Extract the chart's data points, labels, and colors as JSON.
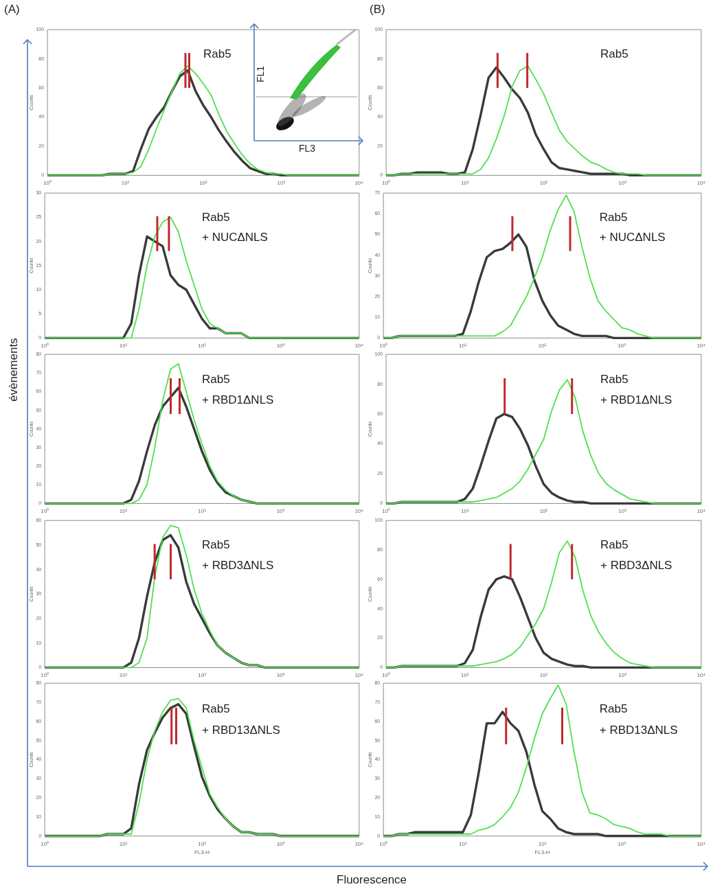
{
  "chart_data": [
    {
      "type": "line",
      "x": [
        1,
        1.26,
        1.58,
        2,
        2.51,
        3.16,
        3.98,
        5.01,
        6.31,
        7.94,
        10,
        12.6,
        15.8,
        20,
        25.1,
        31.6,
        39.8,
        50.1,
        63.1,
        79.4,
        100,
        126,
        158,
        200,
        251,
        316,
        398,
        501,
        631,
        794,
        1000,
        1259,
        1585,
        1995,
        2512,
        3162,
        3981,
        5012,
        6310,
        7943,
        10000
      ],
      "ylabel": "Counts",
      "annotations": [
        "Rab5"
      ],
      "xlim": [
        1,
        10000
      ],
      "xticks": [
        {
          "value": 1,
          "label": "10⁰"
        },
        {
          "value": 10,
          "label": "10¹"
        },
        {
          "value": 100,
          "label": "10²"
        },
        {
          "value": 1000,
          "label": "10³"
        },
        {
          "value": 10000,
          "label": "10⁴"
        }
      ],
      "ylim": [
        0,
        100
      ],
      "yticks": [
        0,
        20,
        40,
        60,
        80,
        100
      ],
      "log": "x",
      "marker": "none",
      "ref_lines": [
        {
          "axis": "x",
          "value": 59,
          "color": "#c0282d"
        },
        {
          "axis": "x",
          "value": 66,
          "color": "#c0282d"
        }
      ],
      "series": [
        {
          "color": "#3a3a3a",
          "values": [
            0,
            0,
            0,
            0,
            0,
            0,
            0,
            0,
            1,
            1,
            1,
            3,
            18,
            32,
            40,
            47,
            58,
            68,
            72,
            58,
            48,
            40,
            31,
            23,
            16,
            10,
            5,
            3,
            1,
            1,
            0,
            0,
            0,
            0,
            0,
            0,
            0,
            0,
            0,
            0,
            0
          ]
        },
        {
          "color": "#4fe04f",
          "values": [
            0,
            0,
            0,
            0,
            0,
            0,
            0,
            0,
            1,
            1,
            1,
            2,
            6,
            18,
            32,
            45,
            58,
            70,
            75,
            70,
            63,
            55,
            42,
            30,
            22,
            14,
            8,
            4,
            2,
            1,
            1,
            0,
            0,
            0,
            0,
            0,
            0,
            0,
            0,
            0,
            0
          ]
        }
      ]
    },
    {
      "type": "line",
      "x": [
        1,
        1.26,
        1.58,
        2,
        2.51,
        3.16,
        3.98,
        5.01,
        6.31,
        7.94,
        10,
        12.6,
        15.8,
        20,
        25.1,
        31.6,
        39.8,
        50.1,
        63.1,
        79.4,
        100,
        126,
        158,
        200,
        251,
        316,
        398,
        501,
        631,
        794,
        1000,
        1259,
        1585,
        1995,
        2512,
        3162,
        3981,
        5012,
        6310,
        7943,
        10000
      ],
      "ylabel": "Counts",
      "annotations": [
        "Rab5"
      ],
      "xlim": [
        1,
        10000
      ],
      "xticks": [
        {
          "value": 1,
          "label": "10⁰"
        },
        {
          "value": 10,
          "label": "10¹"
        },
        {
          "value": 100,
          "label": "10²"
        },
        {
          "value": 1000,
          "label": "10³"
        },
        {
          "value": 10000,
          "label": "10⁴"
        }
      ],
      "ylim": [
        0,
        100
      ],
      "yticks": [
        0,
        20,
        40,
        60,
        80,
        100
      ],
      "log": "x",
      "marker": "none",
      "ref_lines": [
        {
          "axis": "x",
          "value": 26,
          "color": "#c0282d"
        },
        {
          "axis": "x",
          "value": 62,
          "color": "#c0282d"
        }
      ],
      "series": [
        {
          "color": "#3a3a3a",
          "values": [
            0,
            0,
            1,
            1,
            2,
            2,
            2,
            2,
            1,
            1,
            2,
            18,
            41,
            67,
            74,
            67,
            59,
            53,
            43,
            28,
            18,
            9,
            5,
            4,
            3,
            2,
            1,
            1,
            1,
            1,
            1,
            0,
            0,
            0,
            0,
            0,
            0,
            0,
            0,
            0,
            0
          ]
        },
        {
          "color": "#4fe04f",
          "values": [
            0,
            0,
            1,
            1,
            1,
            1,
            1,
            1,
            1,
            1,
            1,
            1,
            4,
            12,
            25,
            41,
            61,
            72,
            75,
            66,
            56,
            43,
            31,
            23,
            18,
            13,
            9,
            7,
            4,
            2,
            1,
            1,
            1,
            0,
            0,
            0,
            0,
            0,
            0,
            0,
            0
          ]
        }
      ]
    },
    {
      "type": "line",
      "x": [
        1,
        1.26,
        1.58,
        2,
        2.51,
        3.16,
        3.98,
        5.01,
        6.31,
        7.94,
        10,
        12.6,
        15.8,
        20,
        25.1,
        31.6,
        39.8,
        50.1,
        63.1,
        79.4,
        100,
        126,
        158,
        200,
        251,
        316,
        398,
        501,
        631,
        794,
        1000,
        1259,
        1585,
        1995,
        2512,
        3162,
        3981,
        5012,
        6310,
        7943,
        10000
      ],
      "ylabel": "Counts",
      "annotations": [
        "Rab5",
        "+ NUCΔNLS"
      ],
      "xlim": [
        1,
        10000
      ],
      "xticks": [
        {
          "value": 1,
          "label": "10⁰"
        },
        {
          "value": 10,
          "label": "10¹"
        },
        {
          "value": 100,
          "label": "10²"
        },
        {
          "value": 1000,
          "label": "10³"
        },
        {
          "value": 10000,
          "label": "10⁴"
        }
      ],
      "ylim": [
        0,
        30
      ],
      "yticks": [
        0,
        5,
        10,
        15,
        20,
        25,
        30
      ],
      "log": "x",
      "marker": "none",
      "ref_lines": [
        {
          "axis": "x",
          "value": 27,
          "color": "#c0282d"
        },
        {
          "axis": "x",
          "value": 38,
          "color": "#c0282d"
        }
      ],
      "series": [
        {
          "color": "#3a3a3a",
          "values": [
            0,
            0,
            0,
            0,
            0,
            0,
            0,
            0,
            0,
            0,
            0,
            3,
            13,
            21,
            20,
            19,
            13,
            11,
            10,
            7,
            4,
            2,
            2,
            1,
            1,
            1,
            0,
            0,
            0,
            0,
            0,
            0,
            0,
            0,
            0,
            0,
            0,
            0,
            0,
            0,
            0
          ]
        },
        {
          "color": "#4fe04f",
          "values": [
            0,
            0,
            0,
            0,
            0,
            0,
            0,
            0,
            0,
            0,
            0,
            0,
            6,
            15,
            21,
            24,
            25,
            22,
            16,
            11,
            6,
            3,
            2,
            1,
            1,
            1,
            0,
            0,
            0,
            0,
            0,
            0,
            0,
            0,
            0,
            0,
            0,
            0,
            0,
            0,
            0
          ]
        }
      ]
    },
    {
      "type": "line",
      "x": [
        1,
        1.26,
        1.58,
        2,
        2.51,
        3.16,
        3.98,
        5.01,
        6.31,
        7.94,
        10,
        12.6,
        15.8,
        20,
        25.1,
        31.6,
        39.8,
        50.1,
        63.1,
        79.4,
        100,
        126,
        158,
        200,
        251,
        316,
        398,
        501,
        631,
        794,
        1000,
        1259,
        1585,
        1995,
        2512,
        3162,
        3981,
        5012,
        6310,
        7943,
        10000
      ],
      "ylabel": "Counts",
      "annotations": [
        "Rab5",
        "+ NUCΔNLS"
      ],
      "xlim": [
        1,
        10000
      ],
      "xticks": [
        {
          "value": 1,
          "label": "10⁰"
        },
        {
          "value": 10,
          "label": "10¹"
        },
        {
          "value": 100,
          "label": "10²"
        },
        {
          "value": 1000,
          "label": "10³"
        },
        {
          "value": 10000,
          "label": "10⁴"
        }
      ],
      "ylim": [
        0,
        70
      ],
      "yticks": [
        0,
        10,
        20,
        30,
        40,
        50,
        60,
        70
      ],
      "log": "x",
      "marker": "none",
      "ref_lines": [
        {
          "axis": "x",
          "value": 42,
          "color": "#c0282d"
        },
        {
          "axis": "x",
          "value": 224,
          "color": "#c0282d"
        }
      ],
      "series": [
        {
          "color": "#3a3a3a",
          "values": [
            0,
            0,
            1,
            1,
            1,
            1,
            1,
            1,
            1,
            1,
            2,
            13,
            27,
            39,
            42,
            43,
            46,
            50,
            44,
            28,
            18,
            11,
            6,
            4,
            2,
            1,
            1,
            1,
            1,
            0,
            0,
            0,
            0,
            0,
            0,
            0,
            0,
            0,
            0,
            0,
            0
          ]
        },
        {
          "color": "#4fe04f",
          "values": [
            0,
            0,
            1,
            1,
            1,
            1,
            1,
            1,
            1,
            1,
            1,
            1,
            1,
            1,
            1,
            3,
            6,
            13,
            20,
            29,
            39,
            52,
            62,
            69,
            61,
            44,
            29,
            18,
            13,
            9,
            5,
            4,
            2,
            1,
            0,
            0,
            0,
            0,
            0,
            0,
            0
          ]
        }
      ]
    },
    {
      "type": "line",
      "x": [
        1,
        1.26,
        1.58,
        2,
        2.51,
        3.16,
        3.98,
        5.01,
        6.31,
        7.94,
        10,
        12.6,
        15.8,
        20,
        25.1,
        31.6,
        39.8,
        50.1,
        63.1,
        79.4,
        100,
        126,
        158,
        200,
        251,
        316,
        398,
        501,
        631,
        794,
        1000,
        1259,
        1585,
        1995,
        2512,
        3162,
        3981,
        5012,
        6310,
        7943,
        10000
      ],
      "ylabel": "Counts",
      "annotations": [
        "Rab5",
        "+ RBD1ΔNLS"
      ],
      "xlim": [
        1,
        10000
      ],
      "xticks": [
        {
          "value": 1,
          "label": "10⁰"
        },
        {
          "value": 10,
          "label": "10¹"
        },
        {
          "value": 100,
          "label": "10²"
        },
        {
          "value": 1000,
          "label": "10³"
        },
        {
          "value": 10000,
          "label": "10⁴"
        }
      ],
      "ylim": [
        0,
        80
      ],
      "yticks": [
        0,
        10,
        20,
        30,
        40,
        50,
        60,
        70,
        80
      ],
      "log": "x",
      "marker": "none",
      "ref_lines": [
        {
          "axis": "x",
          "value": 40,
          "color": "#c0282d"
        },
        {
          "axis": "x",
          "value": 52,
          "color": "#c0282d"
        }
      ],
      "series": [
        {
          "color": "#3a3a3a",
          "values": [
            0,
            0,
            0,
            0,
            0,
            0,
            0,
            0,
            0,
            0,
            0,
            2,
            12,
            28,
            42,
            52,
            57,
            62,
            52,
            40,
            28,
            18,
            11,
            6,
            4,
            2,
            1,
            0,
            0,
            0,
            0,
            0,
            0,
            0,
            0,
            0,
            0,
            0,
            0,
            0,
            0
          ]
        },
        {
          "color": "#4fe04f",
          "values": [
            0,
            0,
            0,
            0,
            0,
            0,
            0,
            0,
            0,
            0,
            0,
            0,
            2,
            10,
            30,
            55,
            72,
            75,
            60,
            45,
            32,
            20,
            12,
            7,
            4,
            2,
            1,
            0,
            0,
            0,
            0,
            0,
            0,
            0,
            0,
            0,
            0,
            0,
            0,
            0,
            0
          ]
        }
      ]
    },
    {
      "type": "line",
      "x": [
        1,
        1.26,
        1.58,
        2,
        2.51,
        3.16,
        3.98,
        5.01,
        6.31,
        7.94,
        10,
        12.6,
        15.8,
        20,
        25.1,
        31.6,
        39.8,
        50.1,
        63.1,
        79.4,
        100,
        126,
        158,
        200,
        251,
        316,
        398,
        501,
        631,
        794,
        1000,
        1259,
        1585,
        1995,
        2512,
        3162,
        3981,
        5012,
        6310,
        7943,
        10000
      ],
      "ylabel": "Counts",
      "annotations": [
        "Rab5",
        "+ RBD1ΔNLS"
      ],
      "xlim": [
        1,
        10000
      ],
      "xticks": [
        {
          "value": 1,
          "label": "10⁰"
        },
        {
          "value": 10,
          "label": "10¹"
        },
        {
          "value": 100,
          "label": "10²"
        },
        {
          "value": 1000,
          "label": "10³"
        },
        {
          "value": 10000,
          "label": "10⁴"
        }
      ],
      "ylim": [
        0,
        100
      ],
      "yticks": [
        0,
        20,
        40,
        60,
        80,
        100
      ],
      "log": "x",
      "marker": "none",
      "ref_lines": [
        {
          "axis": "x",
          "value": 32,
          "color": "#c0282d"
        },
        {
          "axis": "x",
          "value": 229,
          "color": "#c0282d"
        }
      ],
      "series": [
        {
          "color": "#3a3a3a",
          "values": [
            0,
            0,
            1,
            1,
            1,
            1,
            1,
            1,
            1,
            1,
            3,
            10,
            25,
            42,
            57,
            60,
            58,
            50,
            39,
            25,
            13,
            7,
            4,
            2,
            1,
            1,
            0,
            0,
            0,
            0,
            0,
            0,
            0,
            0,
            0,
            0,
            0,
            0,
            0,
            0,
            0
          ]
        },
        {
          "color": "#4fe04f",
          "values": [
            0,
            0,
            1,
            1,
            1,
            1,
            1,
            1,
            1,
            1,
            1,
            1,
            2,
            3,
            4,
            7,
            10,
            15,
            23,
            33,
            43,
            62,
            76,
            83,
            71,
            48,
            32,
            20,
            13,
            9,
            6,
            3,
            2,
            1,
            0,
            0,
            0,
            0,
            0,
            0,
            0
          ]
        }
      ]
    },
    {
      "type": "line",
      "x": [
        1,
        1.26,
        1.58,
        2,
        2.51,
        3.16,
        3.98,
        5.01,
        6.31,
        7.94,
        10,
        12.6,
        15.8,
        20,
        25.1,
        31.6,
        39.8,
        50.1,
        63.1,
        79.4,
        100,
        126,
        158,
        200,
        251,
        316,
        398,
        501,
        631,
        794,
        1000,
        1259,
        1585,
        1995,
        2512,
        3162,
        3981,
        5012,
        6310,
        7943,
        10000
      ],
      "ylabel": "Counts",
      "annotations": [
        "Rab5",
        "+ RBD3ΔNLS"
      ],
      "xlim": [
        1,
        10000
      ],
      "xticks": [
        {
          "value": 1,
          "label": "10⁰"
        },
        {
          "value": 10,
          "label": "10¹"
        },
        {
          "value": 100,
          "label": "10²"
        },
        {
          "value": 1000,
          "label": "10³"
        },
        {
          "value": 10000,
          "label": "10⁴"
        }
      ],
      "ylim": [
        0,
        60
      ],
      "yticks": [
        0,
        10,
        20,
        30,
        40,
        50,
        60
      ],
      "log": "x",
      "marker": "none",
      "ref_lines": [
        {
          "axis": "x",
          "value": 25,
          "color": "#c0282d"
        },
        {
          "axis": "x",
          "value": 40,
          "color": "#c0282d"
        }
      ],
      "series": [
        {
          "color": "#3a3a3a",
          "values": [
            0,
            0,
            0,
            0,
            0,
            0,
            0,
            0,
            0,
            0,
            0,
            2,
            12,
            29,
            43,
            52,
            54,
            49,
            35,
            26,
            20,
            14,
            9,
            6,
            4,
            2,
            1,
            1,
            0,
            0,
            0,
            0,
            0,
            0,
            0,
            0,
            0,
            0,
            0,
            0,
            0
          ]
        },
        {
          "color": "#4fe04f",
          "values": [
            0,
            0,
            0,
            0,
            0,
            0,
            0,
            0,
            0,
            0,
            0,
            0,
            2,
            12,
            37,
            53,
            58,
            57,
            46,
            32,
            22,
            15,
            9,
            6,
            4,
            2,
            1,
            1,
            0,
            0,
            0,
            0,
            0,
            0,
            0,
            0,
            0,
            0,
            0,
            0,
            0
          ]
        }
      ]
    },
    {
      "type": "line",
      "x": [
        1,
        1.26,
        1.58,
        2,
        2.51,
        3.16,
        3.98,
        5.01,
        6.31,
        7.94,
        10,
        12.6,
        15.8,
        20,
        25.1,
        31.6,
        39.8,
        50.1,
        63.1,
        79.4,
        100,
        126,
        158,
        200,
        251,
        316,
        398,
        501,
        631,
        794,
        1000,
        1259,
        1585,
        1995,
        2512,
        3162,
        3981,
        5012,
        6310,
        7943,
        10000
      ],
      "ylabel": "Counts",
      "annotations": [
        "Rab5",
        "+ RBD3ΔNLS"
      ],
      "xlim": [
        1,
        10000
      ],
      "xticks": [
        {
          "value": 1,
          "label": "10⁰"
        },
        {
          "value": 10,
          "label": "10¹"
        },
        {
          "value": 100,
          "label": "10²"
        },
        {
          "value": 1000,
          "label": "10³"
        },
        {
          "value": 10000,
          "label": "10⁴"
        }
      ],
      "ylim": [
        0,
        100
      ],
      "yticks": [
        0,
        20,
        40,
        60,
        80,
        100
      ],
      "log": "x",
      "marker": "none",
      "ref_lines": [
        {
          "axis": "x",
          "value": 38,
          "color": "#c0282d"
        },
        {
          "axis": "x",
          "value": 229,
          "color": "#c0282d"
        }
      ],
      "series": [
        {
          "color": "#3a3a3a",
          "values": [
            0,
            0,
            1,
            1,
            1,
            1,
            1,
            1,
            1,
            1,
            3,
            12,
            34,
            53,
            60,
            62,
            60,
            48,
            34,
            20,
            10,
            6,
            4,
            2,
            1,
            1,
            0,
            0,
            0,
            0,
            0,
            0,
            0,
            0,
            0,
            0,
            0,
            0,
            0,
            0,
            0
          ]
        },
        {
          "color": "#4fe04f",
          "values": [
            0,
            0,
            1,
            1,
            1,
            1,
            1,
            1,
            1,
            1,
            1,
            1,
            2,
            3,
            4,
            6,
            9,
            14,
            22,
            30,
            40,
            58,
            78,
            86,
            75,
            52,
            35,
            24,
            16,
            10,
            6,
            3,
            2,
            1,
            0,
            0,
            0,
            0,
            0,
            0,
            0
          ]
        }
      ]
    },
    {
      "type": "line",
      "x": [
        1,
        1.26,
        1.58,
        2,
        2.51,
        3.16,
        3.98,
        5.01,
        6.31,
        7.94,
        10,
        12.6,
        15.8,
        20,
        25.1,
        31.6,
        39.8,
        50.1,
        63.1,
        79.4,
        100,
        126,
        158,
        200,
        251,
        316,
        398,
        501,
        631,
        794,
        1000,
        1259,
        1585,
        1995,
        2512,
        3162,
        3981,
        5012,
        6310,
        7943,
        10000
      ],
      "ylabel": "Counts",
      "xlabel": "FL3-H",
      "annotations": [
        "Rab5",
        "+ RBD13ΔNLS"
      ],
      "xlim": [
        1,
        10000
      ],
      "xticks": [
        {
          "value": 1,
          "label": "10⁰"
        },
        {
          "value": 10,
          "label": "10¹"
        },
        {
          "value": 100,
          "label": "10²"
        },
        {
          "value": 1000,
          "label": "10³"
        },
        {
          "value": 10000,
          "label": "10⁴"
        }
      ],
      "ylim": [
        0,
        80
      ],
      "yticks": [
        0,
        10,
        20,
        30,
        40,
        50,
        60,
        70,
        80
      ],
      "log": "x",
      "marker": "none",
      "ref_lines": [
        {
          "axis": "x",
          "value": 41,
          "color": "#c0282d"
        },
        {
          "axis": "x",
          "value": 47,
          "color": "#c0282d"
        }
      ],
      "series": [
        {
          "color": "#3a3a3a",
          "values": [
            0,
            0,
            0,
            0,
            0,
            0,
            0,
            0,
            1,
            1,
            1,
            4,
            27,
            45,
            54,
            62,
            67,
            69,
            64,
            47,
            31,
            21,
            14,
            9,
            5,
            2,
            2,
            1,
            1,
            1,
            0,
            0,
            0,
            0,
            0,
            0,
            0,
            0,
            0,
            0,
            0
          ]
        },
        {
          "color": "#4fe04f",
          "values": [
            0,
            0,
            0,
            0,
            0,
            0,
            0,
            0,
            1,
            1,
            1,
            1,
            17,
            40,
            55,
            65,
            71,
            72,
            67,
            50,
            36,
            22,
            15,
            9,
            5,
            2,
            2,
            1,
            1,
            1,
            0,
            0,
            0,
            0,
            0,
            0,
            0,
            0,
            0,
            0,
            0
          ]
        }
      ]
    },
    {
      "type": "line",
      "x": [
        1,
        1.26,
        1.58,
        2,
        2.51,
        3.16,
        3.98,
        5.01,
        6.31,
        7.94,
        10,
        12.6,
        15.8,
        20,
        25.1,
        31.6,
        39.8,
        50.1,
        63.1,
        79.4,
        100,
        126,
        158,
        200,
        251,
        316,
        398,
        501,
        631,
        794,
        1000,
        1259,
        1585,
        1995,
        2512,
        3162,
        3981,
        5012,
        6310,
        7943,
        10000
      ],
      "ylabel": "Counts",
      "xlabel": "FL3-H",
      "annotations": [
        "Rab5",
        "+ RBD13ΔNLS"
      ],
      "xlim": [
        1,
        10000
      ],
      "xticks": [
        {
          "value": 1,
          "label": "10⁰"
        },
        {
          "value": 10,
          "label": "10¹"
        },
        {
          "value": 100,
          "label": "10²"
        },
        {
          "value": 1000,
          "label": "10³"
        },
        {
          "value": 10000,
          "label": "10⁴"
        }
      ],
      "ylim": [
        0,
        80
      ],
      "yticks": [
        0,
        10,
        20,
        30,
        40,
        50,
        60,
        70,
        80
      ],
      "log": "x",
      "marker": "none",
      "ref_lines": [
        {
          "axis": "x",
          "value": 35,
          "color": "#c0282d"
        },
        {
          "axis": "x",
          "value": 178,
          "color": "#c0282d"
        }
      ],
      "series": [
        {
          "color": "#3a3a3a",
          "values": [
            0,
            0,
            1,
            1,
            2,
            2,
            2,
            2,
            2,
            2,
            2,
            11,
            33,
            59,
            59,
            65,
            59,
            55,
            44,
            27,
            13,
            9,
            4,
            2,
            1,
            1,
            1,
            1,
            0,
            0,
            0,
            0,
            0,
            0,
            0,
            0,
            0,
            0,
            0,
            0,
            0
          ]
        },
        {
          "color": "#4fe04f",
          "values": [
            0,
            0,
            1,
            1,
            1,
            1,
            1,
            1,
            1,
            1,
            1,
            1,
            3,
            4,
            6,
            10,
            15,
            23,
            36,
            51,
            64,
            72,
            79,
            69,
            44,
            23,
            12,
            11,
            9,
            6,
            5,
            4,
            2,
            1,
            1,
            1,
            0,
            0,
            0,
            0,
            0
          ]
        }
      ]
    },
    {
      "type": "other",
      "xlabel": "FL3",
      "ylabel": "FL1"
    },
    {
      "type": "other",
      "annotations": [
        "(A)",
        "(B)"
      ],
      "xlabel": "Fluorescence",
      "ylabel": "évènements"
    }
  ]
}
